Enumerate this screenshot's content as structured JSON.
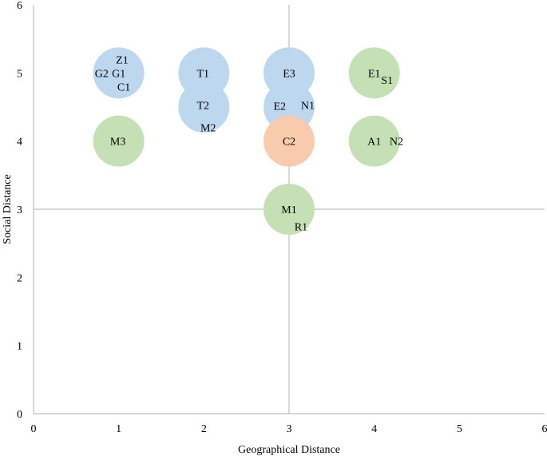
{
  "chart_data": {
    "type": "scatter",
    "xlabel": "Geographical Distance",
    "ylabel": "Social Distance",
    "xlim": [
      0,
      6
    ],
    "ylim": [
      0,
      6
    ],
    "x_ticks": [
      "0",
      "1",
      "2",
      "3",
      "4",
      "5",
      "6"
    ],
    "y_ticks": [
      "0",
      "1",
      "2",
      "3",
      "4",
      "5",
      "6"
    ],
    "grid": false,
    "reference_lines": {
      "x": 3,
      "y": 3
    },
    "bubbles": [
      {
        "x": 1,
        "y": 5,
        "color": "#bdd7ee"
      },
      {
        "x": 2,
        "y": 5,
        "color": "#bdd7ee"
      },
      {
        "x": 2,
        "y": 4.5,
        "color": "#bdd7ee"
      },
      {
        "x": 3,
        "y": 5,
        "color": "#bdd7ee"
      },
      {
        "x": 3,
        "y": 4.5,
        "color": "#bdd7ee"
      },
      {
        "x": 4,
        "y": 5,
        "color": "#c5e0b4"
      },
      {
        "x": 1,
        "y": 4,
        "color": "#c5e0b4"
      },
      {
        "x": 3,
        "y": 4,
        "color": "#f8cbad"
      },
      {
        "x": 4,
        "y": 4,
        "color": "#c5e0b4"
      },
      {
        "x": 3,
        "y": 3,
        "color": "#c5e0b4"
      }
    ],
    "labels": [
      {
        "text": "Z1",
        "x": 1.04,
        "y": 5.2
      },
      {
        "text": "G2",
        "x": 0.8,
        "y": 5.0
      },
      {
        "text": "G1",
        "x": 1.0,
        "y": 5.0
      },
      {
        "text": "C1",
        "x": 1.06,
        "y": 4.8
      },
      {
        "text": "T1",
        "x": 1.99,
        "y": 5.0
      },
      {
        "text": "T2",
        "x": 1.99,
        "y": 4.53
      },
      {
        "text": "M2",
        "x": 2.05,
        "y": 4.2
      },
      {
        "text": "E3",
        "x": 3.0,
        "y": 5.0
      },
      {
        "text": "E2",
        "x": 2.89,
        "y": 4.52
      },
      {
        "text": "N1",
        "x": 3.22,
        "y": 4.53
      },
      {
        "text": "E1",
        "x": 4.0,
        "y": 5.0
      },
      {
        "text": "S1",
        "x": 4.15,
        "y": 4.9
      },
      {
        "text": "M3",
        "x": 0.99,
        "y": 4.0
      },
      {
        "text": "C2",
        "x": 3.0,
        "y": 4.0
      },
      {
        "text": "A1",
        "x": 4.0,
        "y": 4.0
      },
      {
        "text": "N2",
        "x": 4.26,
        "y": 4.0
      },
      {
        "text": "M1",
        "x": 3.0,
        "y": 3.0
      },
      {
        "text": "R1",
        "x": 3.14,
        "y": 2.75
      }
    ]
  }
}
